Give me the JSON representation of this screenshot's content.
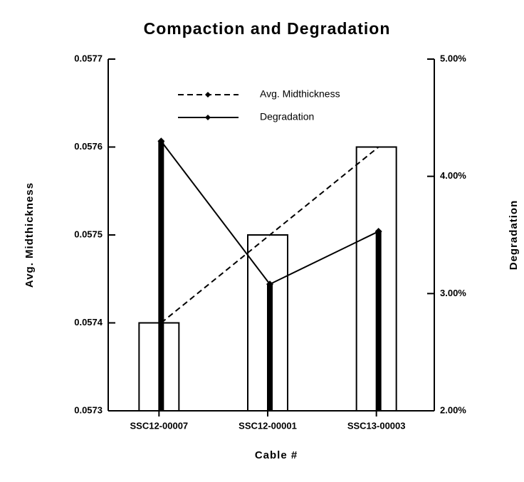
{
  "chart_data": {
    "type": "bar",
    "title": "Compaction and Degradation",
    "x_label": "Cable #",
    "y_label": "Avg. Midthickness",
    "y2_label": "Degradation",
    "categories": [
      "SSC12-00007",
      "SSC12-00001",
      "SSC13-00003"
    ],
    "series": [
      {
        "name": "Avg. Midthickness",
        "color": "#000000",
        "line_style": "dashed",
        "axis": "y",
        "values": [
          0.0574,
          0.0575,
          0.0576
        ]
      },
      {
        "name": "Degradation",
        "color": "#000000",
        "line_style": "solid",
        "axis": "y2",
        "values": [
          4.3,
          3.08,
          3.53
        ]
      }
    ],
    "ylim": [
      0.0573,
      0.0577
    ],
    "yticks": [
      0.0573,
      0.0574,
      0.0575,
      0.0576,
      0.0577
    ],
    "y2lim": [
      2,
      5
    ],
    "y2ticks": [
      {
        "value": 2,
        "label": "2.00%"
      },
      {
        "value": 3,
        "label": "3.00%"
      },
      {
        "value": 4,
        "label": "4.00%"
      },
      {
        "value": 5,
        "label": "5.00%"
      }
    ],
    "legend": "top"
  }
}
